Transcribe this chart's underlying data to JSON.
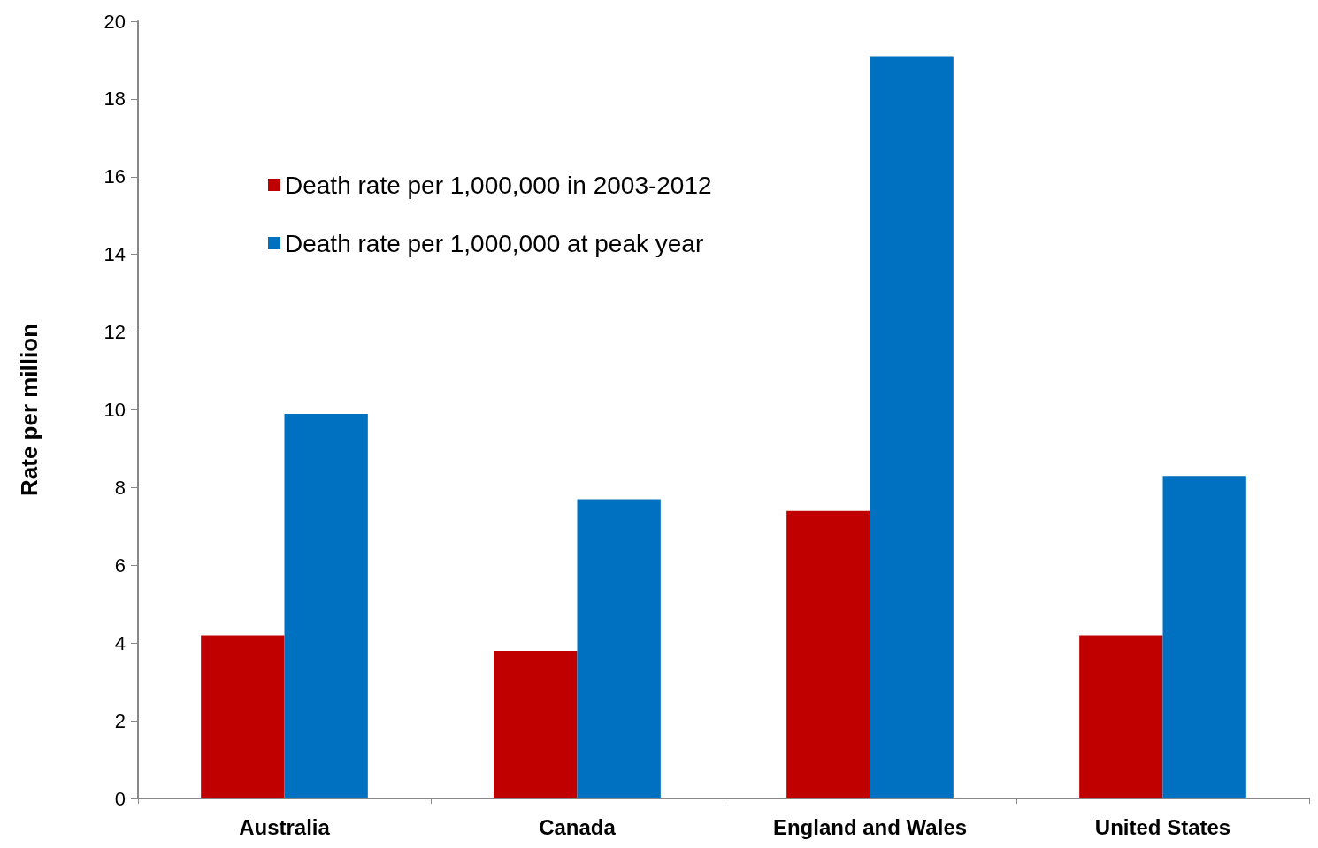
{
  "chart_data": {
    "type": "bar",
    "ylabel": "Rate per million",
    "categories": [
      "Australia",
      "Canada",
      "England and Wales",
      "United States"
    ],
    "series": [
      {
        "name": "Death rate per 1,000,000 in 2003-2012",
        "color": "#c00000",
        "values": [
          4.2,
          3.8,
          7.4,
          4.2
        ]
      },
      {
        "name": "Death rate per 1,000,000 at peak year",
        "color": "#0070c0",
        "values": [
          9.9,
          7.7,
          19.1,
          8.3
        ]
      }
    ],
    "ylim": [
      0,
      20
    ],
    "yticks": [
      0,
      2,
      4,
      6,
      8,
      10,
      12,
      14,
      16,
      18,
      20
    ],
    "grid": false,
    "legend": "top left"
  }
}
